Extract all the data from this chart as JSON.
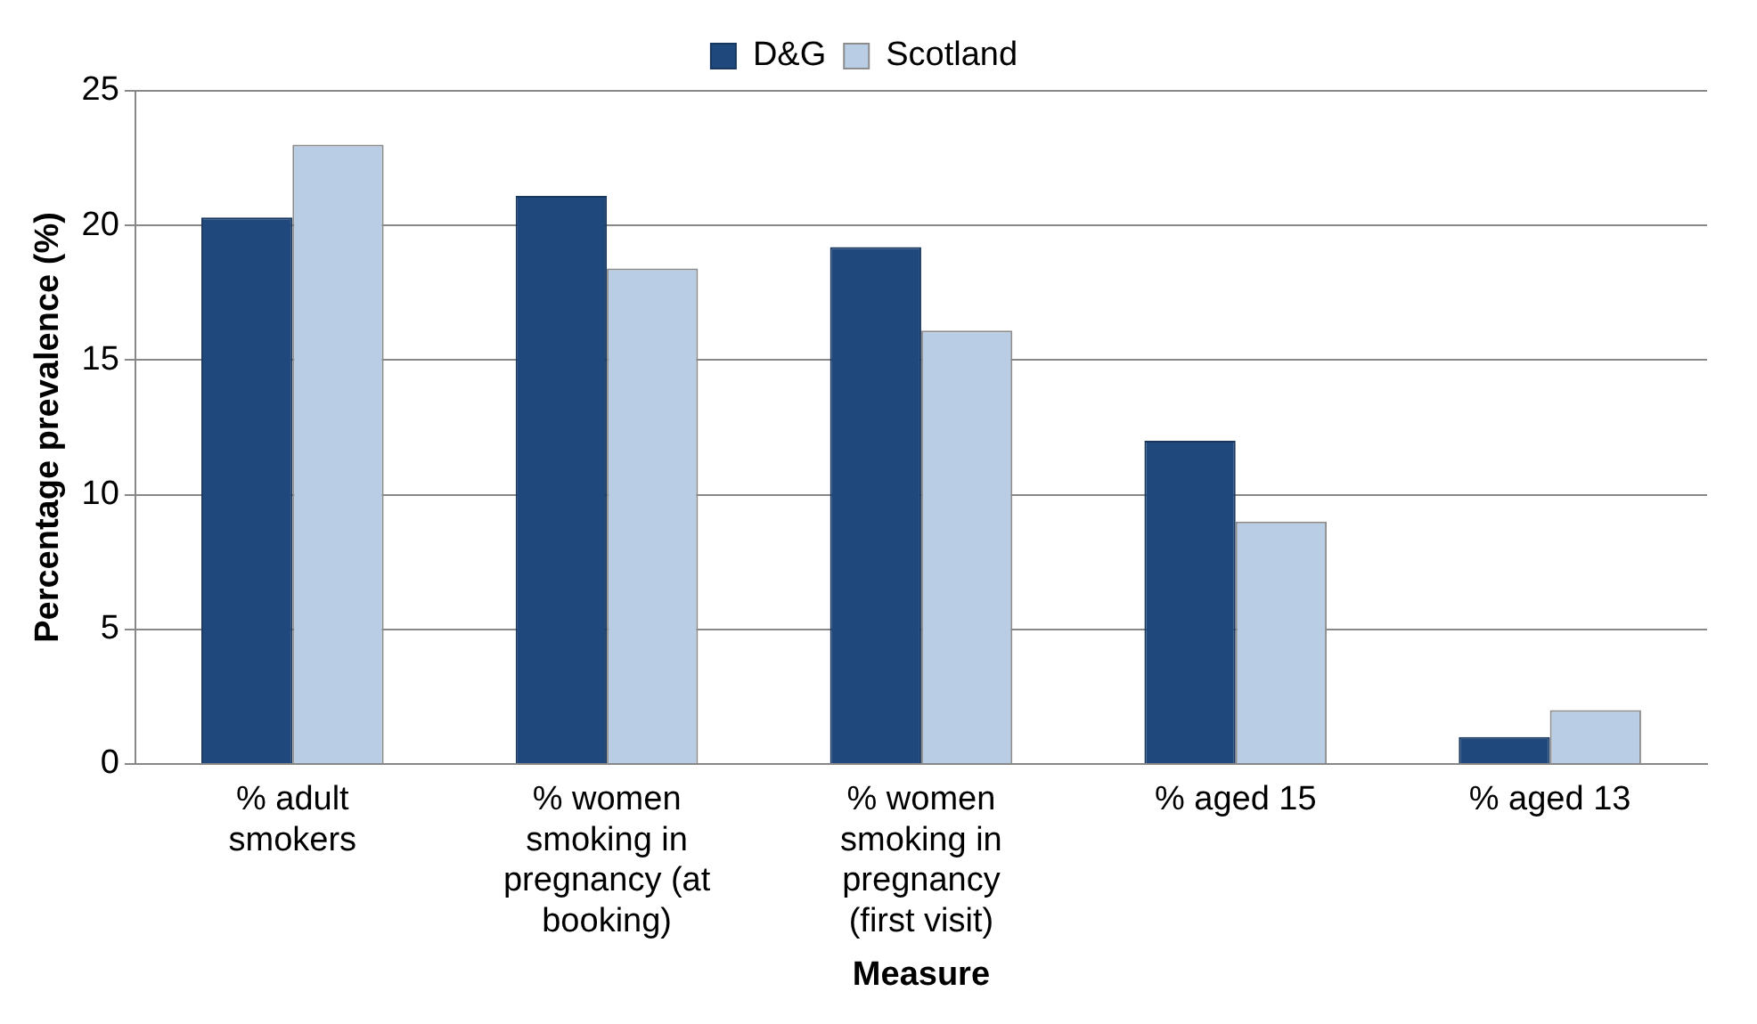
{
  "chart_data": {
    "type": "bar",
    "xlabel": "Measure",
    "ylabel": "Percentage prevalence (%)",
    "categories": [
      "% adult smokers",
      "% women smoking in pregnancy (at booking)",
      "% women smoking in pregnancy (first visit)",
      "% aged 15",
      "% aged 13"
    ],
    "series": [
      {
        "name": "D&G",
        "color": "#1f497d",
        "values": [
          20.3,
          21.1,
          19.2,
          12.0,
          1.0
        ]
      },
      {
        "name": "Scotland",
        "color": "#b9cde5",
        "values": [
          23.0,
          18.4,
          16.1,
          9.0,
          2.0
        ]
      }
    ],
    "ylim": [
      0,
      25
    ],
    "yticks": [
      0,
      5,
      10,
      15,
      20,
      25
    ],
    "grid": "y",
    "legend": "top"
  }
}
